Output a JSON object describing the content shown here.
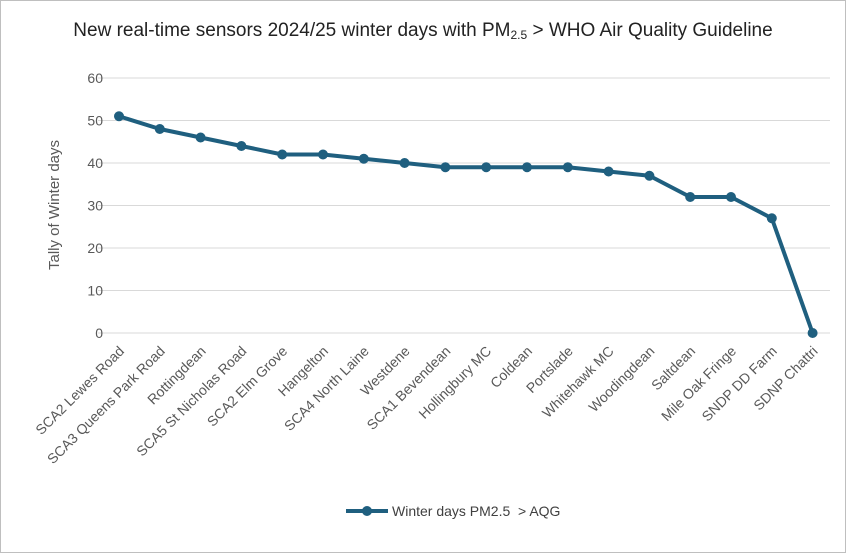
{
  "chart_data": {
    "type": "line",
    "title": {
      "pre": "New real-time sensors 2024/25 winter days with PM",
      "sub": "2.5",
      "post": " > WHO Air Quality Guideline"
    },
    "ylabel": "Tally of Winter days",
    "xlabel": "",
    "ylim": [
      0,
      60
    ],
    "yticks": [
      0,
      10,
      20,
      30,
      40,
      50,
      60
    ],
    "grid": true,
    "legend_position": "bottom",
    "categories": [
      "SCA2 Lewes Road",
      "SCA3 Queens Park Road",
      "Rottingdean",
      "SCA5 St Nicholas Road",
      "SCA2 Elm Grove",
      "Hangelton",
      "SCA4 North Laine",
      "Westdene",
      "SCA1 Bevendean",
      "Hollingbury MC",
      "Coldean",
      "Portslade",
      "Whitehawk MC",
      "Woodingdean",
      "Saltdean",
      "Mile Oak Fringe",
      "SNDP DD Farm",
      "SDNP Chattri"
    ],
    "series": [
      {
        "name": "Winter days PM2.5  > AQG",
        "color": "#1f5f7f",
        "values": [
          51,
          48,
          46,
          44,
          42,
          42,
          41,
          40,
          39,
          39,
          39,
          39,
          38,
          37,
          32,
          32,
          27,
          0
        ]
      }
    ]
  }
}
